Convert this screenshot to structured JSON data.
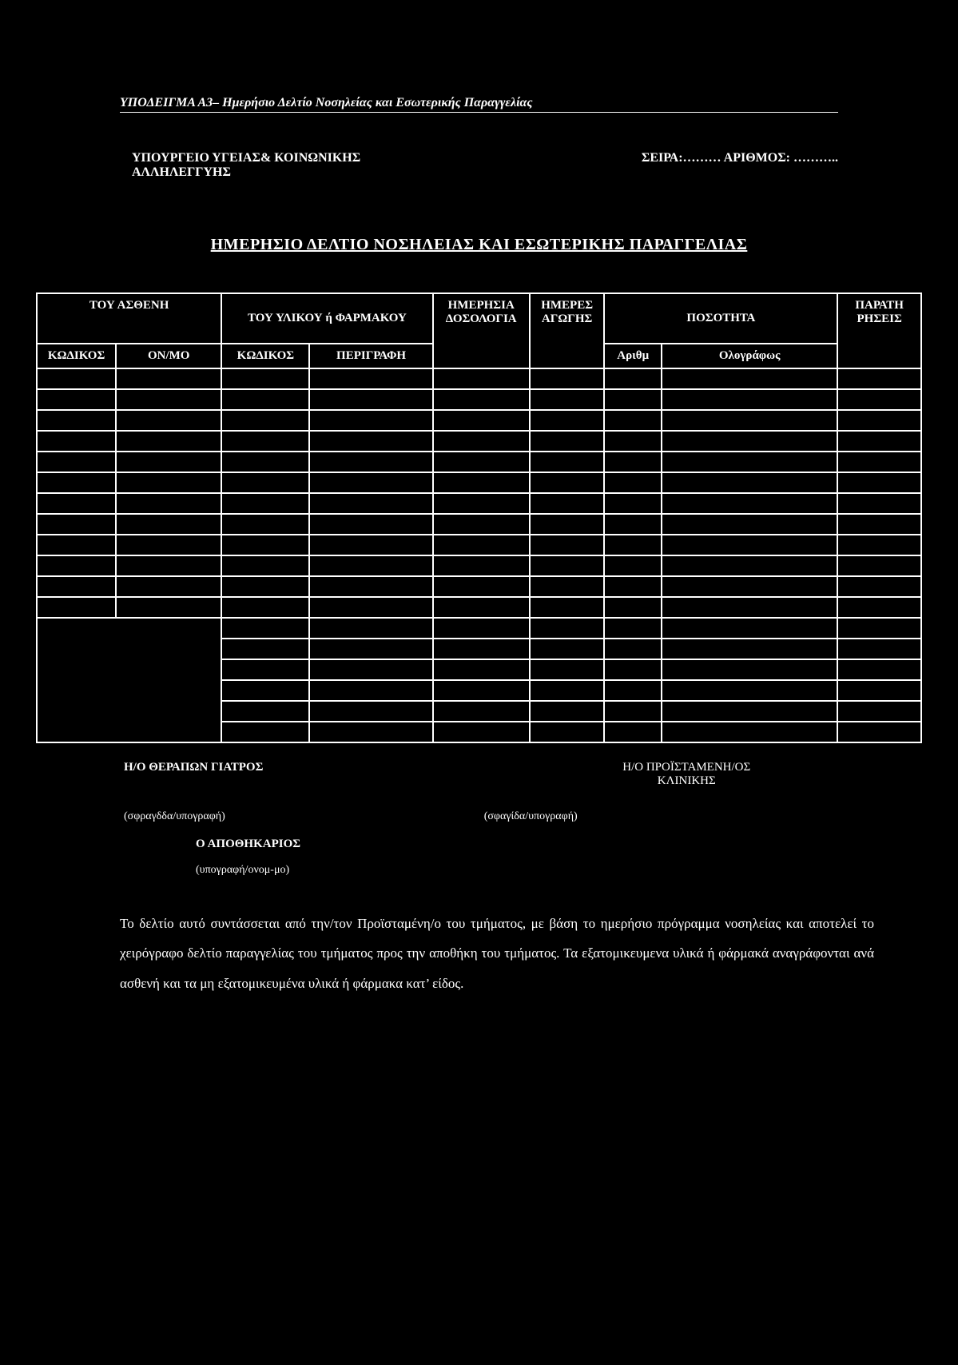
{
  "header": {
    "doc_id": "ΥΠΟΔΕΙΓΜΑ Α3– Ημερήσιο Δελτίο Νοσηλείας και Εσωτερικής Παραγγελίας",
    "org_left": "ΥΠΟΥΡΓΕΙΟ ΥΓΕΙΑΣ& ΚΟΙΝΩΝΙΚΗΣ ΑΛΛΗΛΕΓΓΥΗΣ",
    "seira_label": "ΣΕΙΡΑ:……… ΑΡΙΘΜΟΣ: ………..",
    "title": "ΗΜΕΡΗΣΙΟ ΔΕΛΤΙΟ ΝΟΣΗΛΕΙΑΣ ΚΑΙ ΕΣΩΤΕΡΙΚΗΣ ΠΑΡΑΓΓΕΛΙΑΣ"
  },
  "table": {
    "top": {
      "patient": "ΤΟΥ ΑΣΘΕΝΗ",
      "material": "ΤΟΥ ΥΛΙΚΟΥ ή ΦΑΡΜΑΚΟΥ",
      "dosage": "ΗΜΕΡΗΣΙΑ ΔΟΣΟΛΟΓΙΑ",
      "days": "ΗΜΕΡΕΣ ΑΓΩΓΗΣ",
      "quantity": "ΠΟΣΟΤΗΤΑ",
      "notes": "ΠΑΡΑΤΗ ΡΗΣΕΙΣ"
    },
    "sub": {
      "patient_code": "ΚΩΔΙΚΟΣ",
      "patient_onmo": "ΟΝ/ΜΟ",
      "mat_code": "ΚΩΔΙΚΟΣ",
      "mat_desc": "ΠΕΡΙΓΡΑΦΗ",
      "qty_num": "Αριθμ",
      "qty_words": "Ολογράφως"
    },
    "data_rows_section1": 12,
    "data_rows_section2": 6
  },
  "signatures": {
    "doctor": "Η/Ο ΘΕΡΑΠΩΝ ΓΙΑΤΡΟΣ",
    "head_l1": "Η/Ο  ΠΡΟΪΣΤΑΜΕΝΗ/ΟΣ",
    "head_l2": "ΚΛΙΝΙΚΗΣ",
    "doctor_sig": "(σφραγδδα/υπογραφή)",
    "head_sig": "(σφαγίδα/υπογραφή)",
    "storekeeper": "Ο ΑΠΟΘΗΚΑΡΙΟΣ",
    "storekeeper_sig": "(υπογραφή/ονομ-μο)"
  },
  "description": "Το δελτίο αυτό συντάσσεται από την/τον Προϊσταμένη/ο του τμήματος, με βάση το ημερήσιο πρόγραμμα νοσηλείας και αποτελεί το χειρόγραφο δελτίο παραγγελίας του τμήματος προς την αποθήκη του τμήματος. Τα εξατομικευμενα υλικά ή φάρμακά αναγράφονται ανά ασθενή και τα μη εξατομικευμένα υλικά ή φάρμακα κατ’ είδος."
}
